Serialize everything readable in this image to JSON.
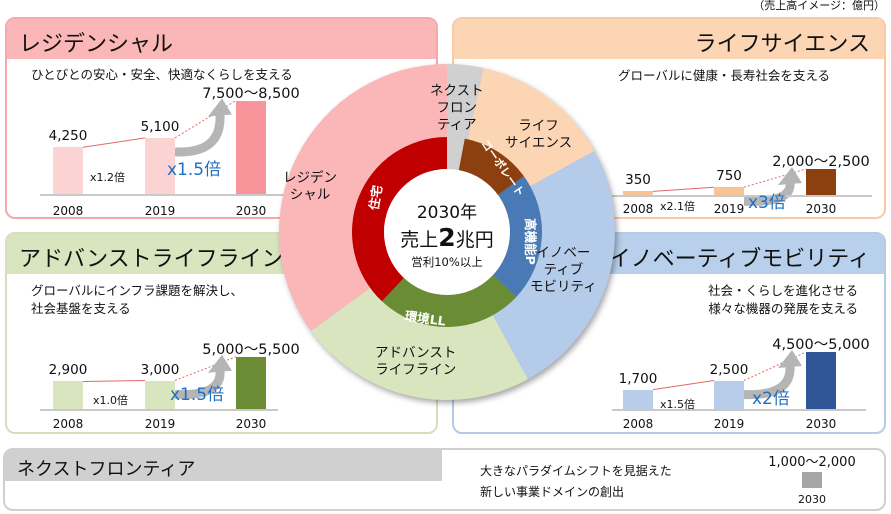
{
  "note": "（売上高イメージ：億円）",
  "center": {
    "year": "2030年",
    "sales_prefix": "売上",
    "sales_num": "2",
    "sales_unit": "兆円",
    "profit": "営利10%以上"
  },
  "chart_data": [
    {
      "type": "pie",
      "title": "2030年 売上2兆円",
      "outer": [
        {
          "label": "ネクストフロンティア",
          "lines": [
            "ネクスト",
            "フロン",
            "ティア"
          ],
          "share": 3.5,
          "color": "#d0d0d0"
        },
        {
          "label": "ライフサイエンス",
          "lines": [
            "ライフ",
            "サイエンス"
          ],
          "share": 13.5,
          "color": "#fcd5b5"
        },
        {
          "label": "イノベーティブモビリティ",
          "lines": [
            "イノベー",
            "ティブ",
            "モビリティ"
          ],
          "share": 25,
          "color": "#b4cbe9"
        },
        {
          "label": "アドバンストライフライン",
          "lines": [
            "アドバンスト",
            "ライフライン"
          ],
          "share": 23,
          "color": "#d8e5bf"
        },
        {
          "label": "レジデンシャル",
          "lines": [
            "レジデン",
            "シャル"
          ],
          "share": 35,
          "color": "#fbb6b8"
        }
      ],
      "inner": [
        {
          "label": "",
          "share": 3,
          "color": "#d0d0d0"
        },
        {
          "label": "コーポレート",
          "share": 12,
          "color": "#8c4010"
        },
        {
          "label": "高機能P",
          "share": 22,
          "color": "#4a7ab5"
        },
        {
          "label": "環境LL",
          "share": 25,
          "color": "#6a8c34"
        },
        {
          "label": "住宅",
          "share": 38,
          "color": "#c00000"
        }
      ]
    },
    {
      "type": "bar",
      "title": "レジデンシャル",
      "subtitle": [
        "ひとびとの安心・安全、快適なくらしを支える"
      ],
      "categories": [
        "2008",
        "2019",
        "2030"
      ],
      "values": [
        4250,
        5100,
        8500
      ],
      "value_labels": [
        "4,250",
        "5,100",
        "7,500～8,500"
      ],
      "multipliers": [
        "x1.2倍",
        "x1.5倍"
      ],
      "colors": [
        "#fcd3d3",
        "#fcd3d3",
        "#f7959a"
      ],
      "header_color": "#fbb6b8",
      "border_color": "#f6a9ab"
    },
    {
      "type": "bar",
      "title": "ライフサイエンス",
      "subtitle": [
        "グローバルに健康・長寿社会を支える"
      ],
      "categories": [
        "2008",
        "2019",
        "2030"
      ],
      "values": [
        350,
        750,
        2500
      ],
      "value_labels": [
        "350",
        "750",
        "2,000～2,500"
      ],
      "multipliers": [
        "x2.1倍",
        "x3倍"
      ],
      "colors": [
        "#f9c495",
        "#f9c495",
        "#8c4010"
      ],
      "header_color": "#fcd5b5",
      "border_color": "#f9c9a3"
    },
    {
      "type": "bar",
      "title": "アドバンストライフライン",
      "subtitle": [
        "グローバルにインフラ課題を解決し、",
        "社会基盤を支える"
      ],
      "categories": [
        "2008",
        "2019",
        "2030"
      ],
      "values": [
        2900,
        3000,
        5500
      ],
      "value_labels": [
        "2,900",
        "3,000",
        "5,000～5,500"
      ],
      "multipliers": [
        "x1.0倍",
        "x1.5倍"
      ],
      "colors": [
        "#d8e5bf",
        "#d8e5bf",
        "#6a8c34"
      ],
      "header_color": "#d8e5bf",
      "border_color": "#d3e0bb"
    },
    {
      "type": "bar",
      "title": "イノベーティブモビリティ",
      "subtitle": [
        "社会・くらしを進化させる",
        "様々な機器の発展を支える"
      ],
      "categories": [
        "2008",
        "2019",
        "2030"
      ],
      "values": [
        1700,
        2500,
        5000
      ],
      "value_labels": [
        "1,700",
        "2,500",
        "4,500～5,000"
      ],
      "multipliers": [
        "x1.5倍",
        "x2倍"
      ],
      "colors": [
        "#b8cde9",
        "#b8cde9",
        "#2f5597"
      ],
      "header_color": "#b8d0ec",
      "border_color": "#b4cbe6"
    },
    {
      "type": "bar",
      "title": "ネクストフロンティア",
      "subtitle": [
        "大きなパラダイムシフトを見据えた",
        "新しい事業ドメインの創出"
      ],
      "categories": [
        "2030"
      ],
      "values": [
        2000
      ],
      "value_labels": [
        "1,000～2,000"
      ],
      "colors": [
        "#a6a6a6"
      ],
      "header_color": "#d0d0d0",
      "border_color": "#cfcfcf"
    }
  ]
}
